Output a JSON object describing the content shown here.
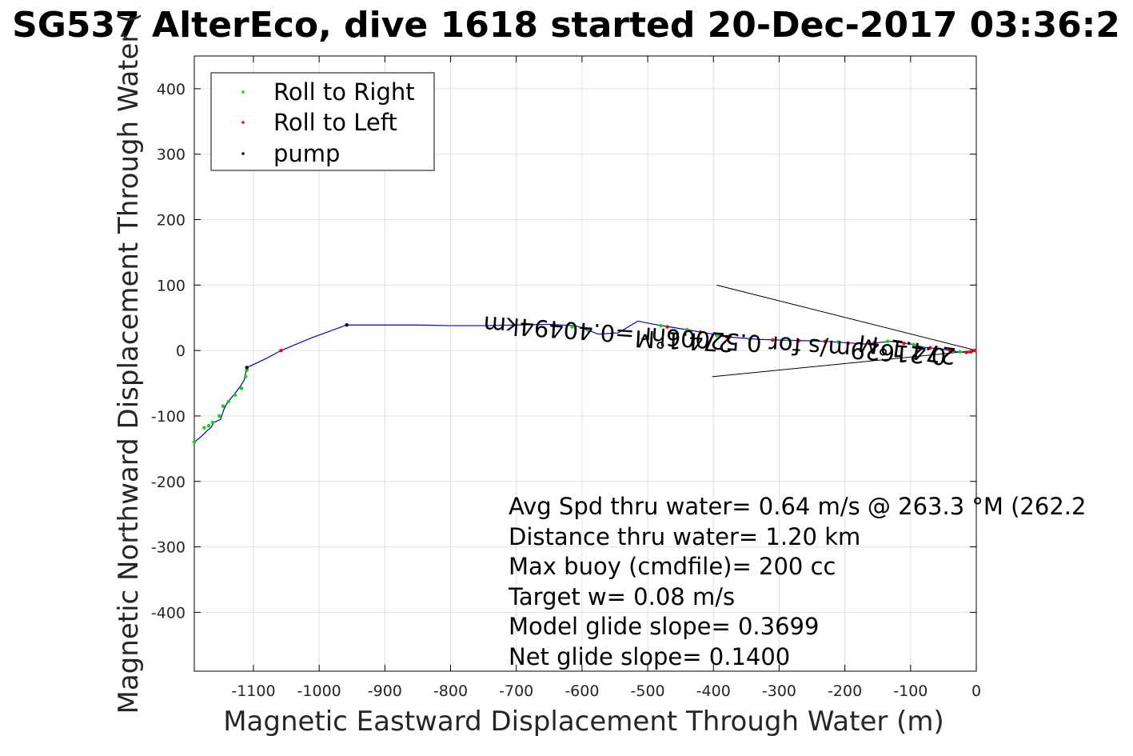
{
  "chart_data": {
    "type": "scatter",
    "title": "SG537 AlterEco, dive 1618 started 20-Dec-2017 03:36:2",
    "xlabel": "Magnetic Eastward Displacement Through Water (m)",
    "ylabel": "Magnetic Northward Displacement Through Water (",
    "xlim": [
      -1190,
      0
    ],
    "ylim": [
      -490,
      450
    ],
    "grid": true,
    "x_ticks": [
      -1100,
      -1000,
      -900,
      -800,
      -700,
      -600,
      -500,
      -400,
      -300,
      -200,
      -100,
      0
    ],
    "y_ticks": [
      400,
      300,
      200,
      100,
      0,
      -100,
      -200,
      -300,
      -400
    ],
    "legend_position": "top-left",
    "legend": [
      {
        "label": "Roll to Right",
        "color": "#00dd00"
      },
      {
        "label": "Roll to Left",
        "color": "#ff0000"
      },
      {
        "label": "pump",
        "color": "#000000"
      }
    ],
    "track": {
      "name": "track",
      "color": "#0000cc",
      "x": [
        0,
        -10,
        -30,
        -50,
        -80,
        -100,
        -130,
        -150,
        -170,
        -200,
        -230,
        -260,
        -300,
        -330,
        -370,
        -400,
        -430,
        -460,
        -490,
        -515,
        -545,
        -575,
        -610,
        -650,
        -700,
        -750,
        -800,
        -850,
        -900,
        -958,
        -1010,
        -1058,
        -1080,
        -1110,
        -1112,
        -1114,
        -1120,
        -1130,
        -1140,
        -1145,
        -1150,
        -1160,
        -1165,
        -1170,
        -1180,
        -1190
      ],
      "y": [
        0,
        -3,
        -2,
        2,
        5,
        10,
        14,
        12,
        10,
        12,
        14,
        15,
        16,
        17,
        20,
        25,
        30,
        35,
        40,
        45,
        27,
        25,
        38,
        40,
        39,
        38,
        38,
        39,
        39,
        39,
        20,
        0,
        -12,
        -26,
        -35,
        -45,
        -55,
        -68,
        -80,
        -90,
        -105,
        -110,
        -118,
        -122,
        -132,
        -140
      ]
    },
    "roll_right": {
      "x": [
        -25,
        -60,
        -95,
        -135,
        -175,
        -210,
        -250,
        -285,
        -345,
        -395,
        -440,
        -480,
        -590,
        -615,
        -1110,
        -1112,
        -1118,
        -1128,
        -1138,
        -1146,
        -1152,
        -1162,
        -1168,
        -1175,
        -1190
      ],
      "y": [
        -2,
        3,
        9,
        14,
        10,
        13,
        15,
        16,
        17,
        23,
        32,
        38,
        30,
        36,
        -30,
        -40,
        -58,
        -68,
        -78,
        -85,
        -100,
        -110,
        -115,
        -118,
        -140
      ]
    },
    "roll_left": {
      "x": [
        -2,
        -8,
        -15,
        -40,
        -70,
        -110,
        -155,
        -195,
        -230,
        -270,
        -310,
        -380,
        -420,
        -470,
        -1058
      ],
      "y": [
        0,
        -2,
        -3,
        0,
        4,
        11,
        12,
        11,
        14,
        15,
        16,
        21,
        28,
        36,
        0
      ]
    },
    "pump": {
      "x": [
        -958,
        -1110
      ],
      "y": [
        39,
        -26
      ]
    },
    "cone_lines": [
      {
        "x": [
          0,
          -395
        ],
        "y": [
          0,
          100
        ]
      },
      {
        "x": [
          0,
          -402
        ],
        "y": [
          0,
          -40
        ]
      }
    ],
    "annotations": [
      {
        "text": "0.21629m/s for 0.52006hr =0.40494km",
        "x": -45,
        "y": 3,
        "rotation_deg": 184
      },
      {
        "text": "274.1°M",
        "x": -30,
        "y": 3,
        "rotation_deg": 188
      },
      {
        "text": "274.1°M",
        "x": -370,
        "y": 23,
        "rotation_deg": 183
      }
    ],
    "stats": [
      "Avg Spd thru water=  0.64 m/s @ 263.3 °M (262.2",
      "Distance thru water=  1.20 km",
      "Max buoy (cmdfile)= 200 cc",
      "Target w= 0.08 m/s",
      "Model glide slope= 0.3699",
      "Net glide slope= 0.1400"
    ]
  }
}
